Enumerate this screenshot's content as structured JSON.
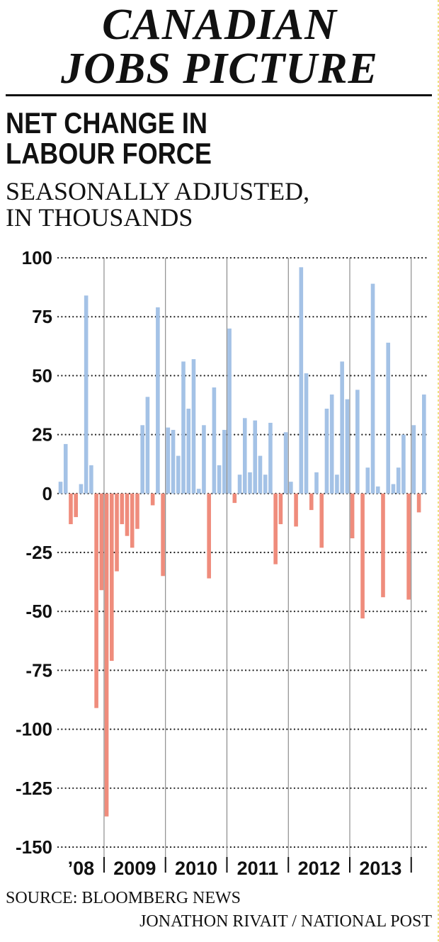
{
  "header": {
    "title_line1": "CANADIAN",
    "title_line2": "JOBS PICTURE",
    "subtitle_line1": "NET CHANGE IN",
    "subtitle_line2": "LABOUR FORCE",
    "units_line1": "SEASONALLY ADJUSTED,",
    "units_line2": "IN THOUSANDS"
  },
  "footer": {
    "source": "SOURCE: BLOOMBERG NEWS",
    "credit": "JONATHON RIVAIT / NATIONAL POST"
  },
  "colors": {
    "positive": "#a4c2e6",
    "negative": "#ef8c7c",
    "text": "#111111",
    "gridline": "#222222",
    "year_divider": "#777777"
  },
  "chart_data": {
    "type": "bar",
    "title": "NET CHANGE IN LABOUR FORCE",
    "subtitle": "SEASONALLY ADJUSTED, IN THOUSANDS",
    "xlabel": "",
    "ylabel": "",
    "ylim": [
      -150,
      100
    ],
    "yticks": [
      100,
      75,
      50,
      25,
      0,
      -25,
      -50,
      -75,
      -100,
      -125,
      -150
    ],
    "ytick_labels": [
      "100",
      "75",
      "50",
      "25",
      "0",
      "-25",
      "-50",
      "-75",
      "-100",
      "-125",
      "-150"
    ],
    "grid": "horizontal dotted",
    "year_groups": [
      {
        "label": "’08",
        "months": 9
      },
      {
        "label": "2009",
        "months": 12
      },
      {
        "label": "2010",
        "months": 12
      },
      {
        "label": "2011",
        "months": 12
      },
      {
        "label": "2012",
        "months": 12
      },
      {
        "label": "2013",
        "months": 12
      },
      {
        "label": "",
        "months": 3
      }
    ],
    "values": [
      5,
      21,
      -13,
      -10,
      4,
      84,
      12,
      -91,
      -41,
      -137,
      -71,
      -33,
      -13,
      -18,
      -23,
      -15,
      29,
      41,
      -5,
      79,
      -35,
      28,
      27,
      16,
      56,
      36,
      57,
      2,
      29,
      -36,
      45,
      12,
      27,
      70,
      -4,
      8,
      32,
      9,
      31,
      16,
      8,
      30,
      -30,
      -13,
      26,
      5,
      -14,
      96,
      51,
      -7,
      9,
      -23,
      36,
      42,
      8,
      56,
      40,
      -19,
      44,
      -53,
      11,
      89,
      3,
      -44,
      64,
      4,
      11,
      25,
      -45,
      29,
      -8,
      42
    ]
  }
}
